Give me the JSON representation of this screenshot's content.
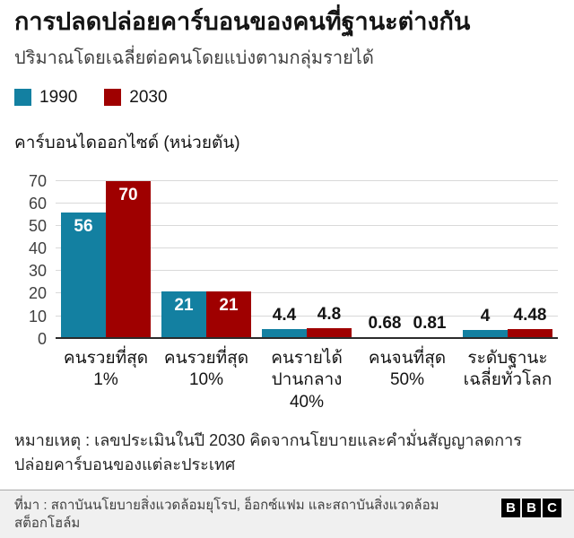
{
  "title": "การปลดปล่อยคาร์บอนของคนที่ฐานะต่างกัน",
  "subtitle": "ปริมาณโดยเฉลี่ยต่อคนโดยแบ่งตามกลุ่มรายได้",
  "legend": [
    {
      "label": "1990",
      "color": "#1380A1"
    },
    {
      "label": "2030",
      "color": "#9F0000"
    }
  ],
  "axis_label": "คาร์บอนไดออกไซด์ (หน่วยตัน)",
  "note": "หมายเหตุ : เลขประเมินในปี 2030 คิดจากนโยบายและคำมั่นสัญญาลดการ\nปล่อยคาร์บอนของแต่ละประเทศ",
  "source": "ที่มา : สถาบันนโยบายสิ่งแวดล้อมยุโรป, อ็อกซ์แฟม และสถาบันสิ่งแวดล้อม\nสต็อกโฮล์ม",
  "bbc": [
    "B",
    "B",
    "C"
  ],
  "chart_data": {
    "type": "bar",
    "categories": [
      "คนรวยที่สุด\n1%",
      "คนรวยที่สุด\n10%",
      "คนรายได้\nปานกลาง\n40%",
      "คนจนที่สุด\n50%",
      "ระดับฐานะ\nเฉลี่ยทั่วโลก"
    ],
    "series": [
      {
        "name": "1990",
        "color": "#1380A1",
        "values": [
          56,
          21,
          4.4,
          0.68,
          4
        ],
        "labels": [
          "56",
          "21",
          "4.4",
          "0.68",
          "4"
        ]
      },
      {
        "name": "2030",
        "color": "#9F0000",
        "values": [
          70,
          21,
          4.8,
          0.81,
          4.48
        ],
        "labels": [
          "70",
          "21",
          "4.8",
          "0.81",
          "4.48"
        ]
      }
    ],
    "title": "การปลดปล่อยคาร์บอนของคนที่ฐานะต่างกัน",
    "xlabel": "",
    "ylabel": "คาร์บอนไดออกไซด์ (หน่วยตัน)",
    "ylim": [
      0,
      70
    ],
    "yticks": [
      0,
      10,
      20,
      30,
      40,
      50,
      60,
      70
    ],
    "grid": true,
    "legend_position": "top"
  }
}
